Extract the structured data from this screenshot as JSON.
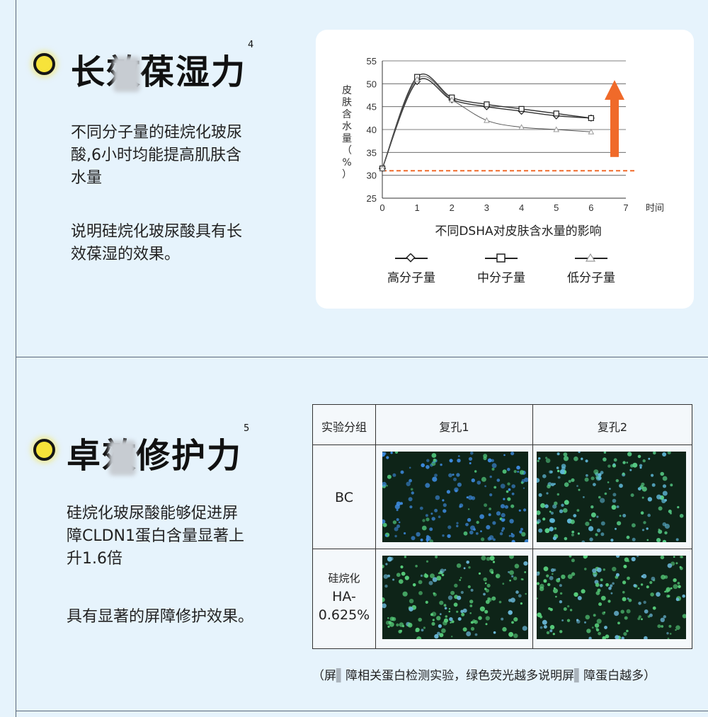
{
  "section1": {
    "title_a": "长效",
    "title_b": "葆湿力",
    "sup": "4",
    "para1": [
      "不同分子量的硅烷化玻尿",
      "酸,6小时均能提高肌肤含",
      "水量"
    ],
    "para2": [
      "说明硅烷化玻尿酸具有长",
      "效葆湿的效果。"
    ]
  },
  "section2": {
    "title_a": "卓效",
    "title_b": "修护力",
    "sup": "5",
    "para1": [
      "硅烷化玻尿酸能够促进屏",
      "障CLDN1蛋白含量显著上",
      "升1.6倍"
    ],
    "para2": "具有显著的屏障修护效果。"
  },
  "chart_data": {
    "type": "line",
    "title": "不同DSHA对皮肤含水量的影响",
    "xlabel": "时间",
    "ylabel": "皮肤含水量（%）",
    "ylabel_chars": [
      "皮",
      "肤",
      "含",
      "水",
      "量",
      "（",
      "%",
      "）"
    ],
    "xlim": [
      0,
      7
    ],
    "ylim": [
      25,
      55
    ],
    "xticks": [
      0,
      1,
      2,
      3,
      4,
      5,
      6,
      7
    ],
    "yticks": [
      25,
      30,
      35,
      40,
      45,
      50,
      55
    ],
    "grid": true,
    "baseline": 31,
    "series": [
      {
        "name": "高分子量",
        "marker": "diamond",
        "x": [
          0,
          1,
          2,
          3,
          4,
          5,
          6
        ],
        "y": [
          31.5,
          50.5,
          46.5,
          45,
          44,
          43,
          42.5
        ]
      },
      {
        "name": "中分子量",
        "marker": "square",
        "x": [
          0,
          1,
          2,
          3,
          4,
          5,
          6
        ],
        "y": [
          31.5,
          51.5,
          47,
          45.5,
          44.5,
          43.5,
          42.5
        ]
      },
      {
        "name": "低分子量",
        "marker": "triangle",
        "x": [
          0,
          1,
          2,
          3,
          4,
          5,
          6
        ],
        "y": [
          31.5,
          51,
          46.5,
          42,
          40.5,
          40,
          39.5
        ]
      }
    ],
    "colors": {
      "line": "#333333",
      "baseline": "#f06a2a",
      "arrow": "#f06a2a",
      "grid": "#555555"
    }
  },
  "table": {
    "headers": [
      "实验分组",
      "复孔1",
      "复孔2"
    ],
    "rows": [
      {
        "label": [
          "BC"
        ],
        "style": "blue"
      },
      {
        "label": [
          "硅烷化",
          "HA-",
          "0.625%"
        ],
        "style": "green"
      }
    ]
  },
  "caption": {
    "a": "（屏",
    "b": "障相关蛋白检测实验，绿色荧光越多说明屏",
    "c": "障蛋白越多）"
  },
  "icons": {
    "bullet": "yellow-circle-bullet",
    "arrow": "up-arrow-icon"
  },
  "colors": {
    "background": "#e6f3fc",
    "bullet": "#f7e33a",
    "accent": "#f06a2a"
  }
}
